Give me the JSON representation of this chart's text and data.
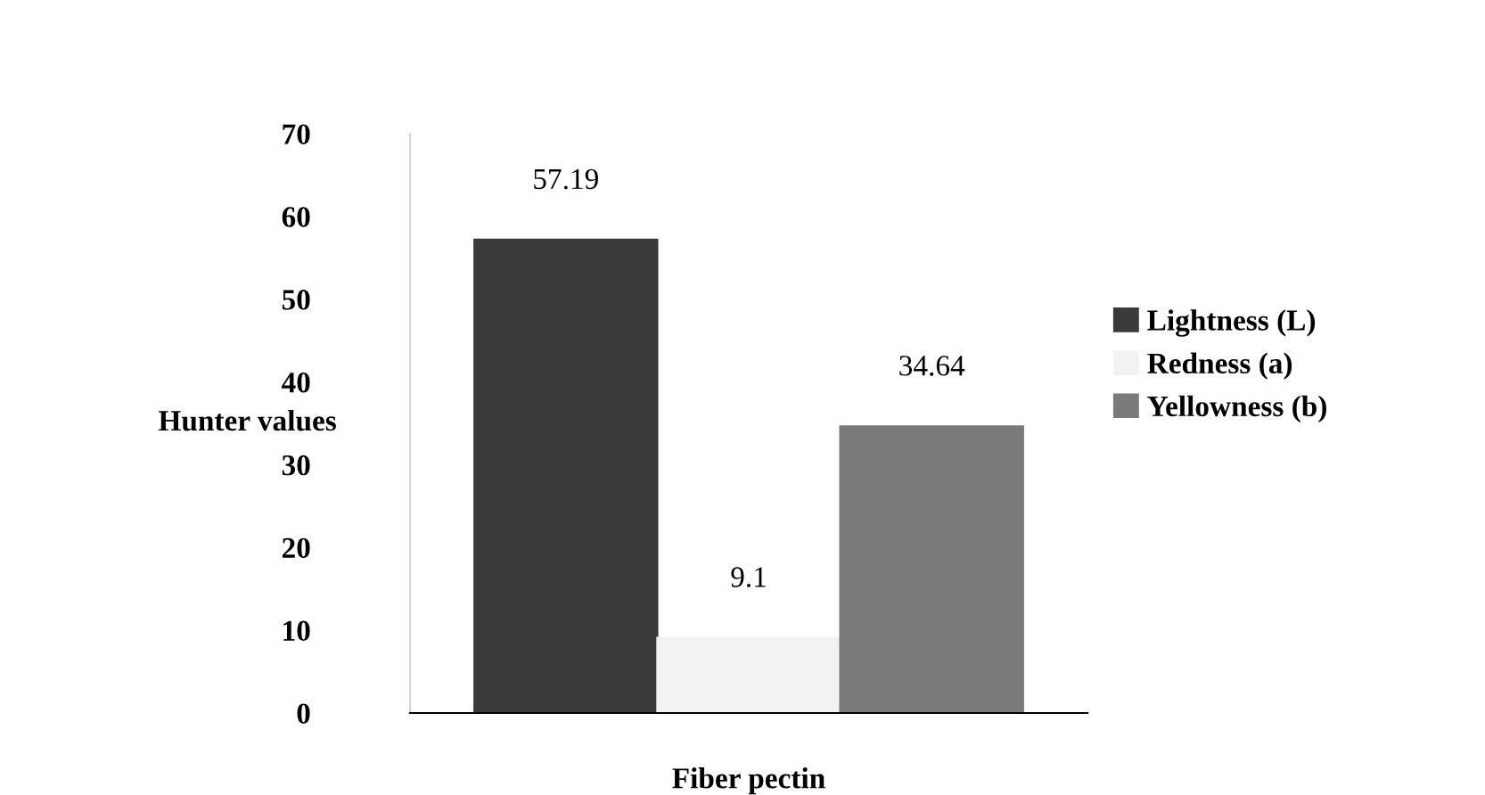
{
  "chart_data": {
    "type": "bar",
    "ylabel": "Hunter values",
    "categories": [
      "Fiber pectin"
    ],
    "series": [
      {
        "name": "Lightness (L)",
        "color": "#3a3a3a",
        "values": [
          57.19
        ]
      },
      {
        "name": "Redness (a)",
        "color": "#f2f2f2",
        "values": [
          9.1
        ]
      },
      {
        "name": "Yellowness (b)",
        "color": "#7a7a7a",
        "values": [
          34.64
        ]
      }
    ],
    "ylim": [
      0,
      70
    ],
    "yticks": [
      0,
      10,
      20,
      30,
      40,
      50,
      60,
      70
    ],
    "data_labels": true,
    "legend": "right",
    "grid": false
  }
}
